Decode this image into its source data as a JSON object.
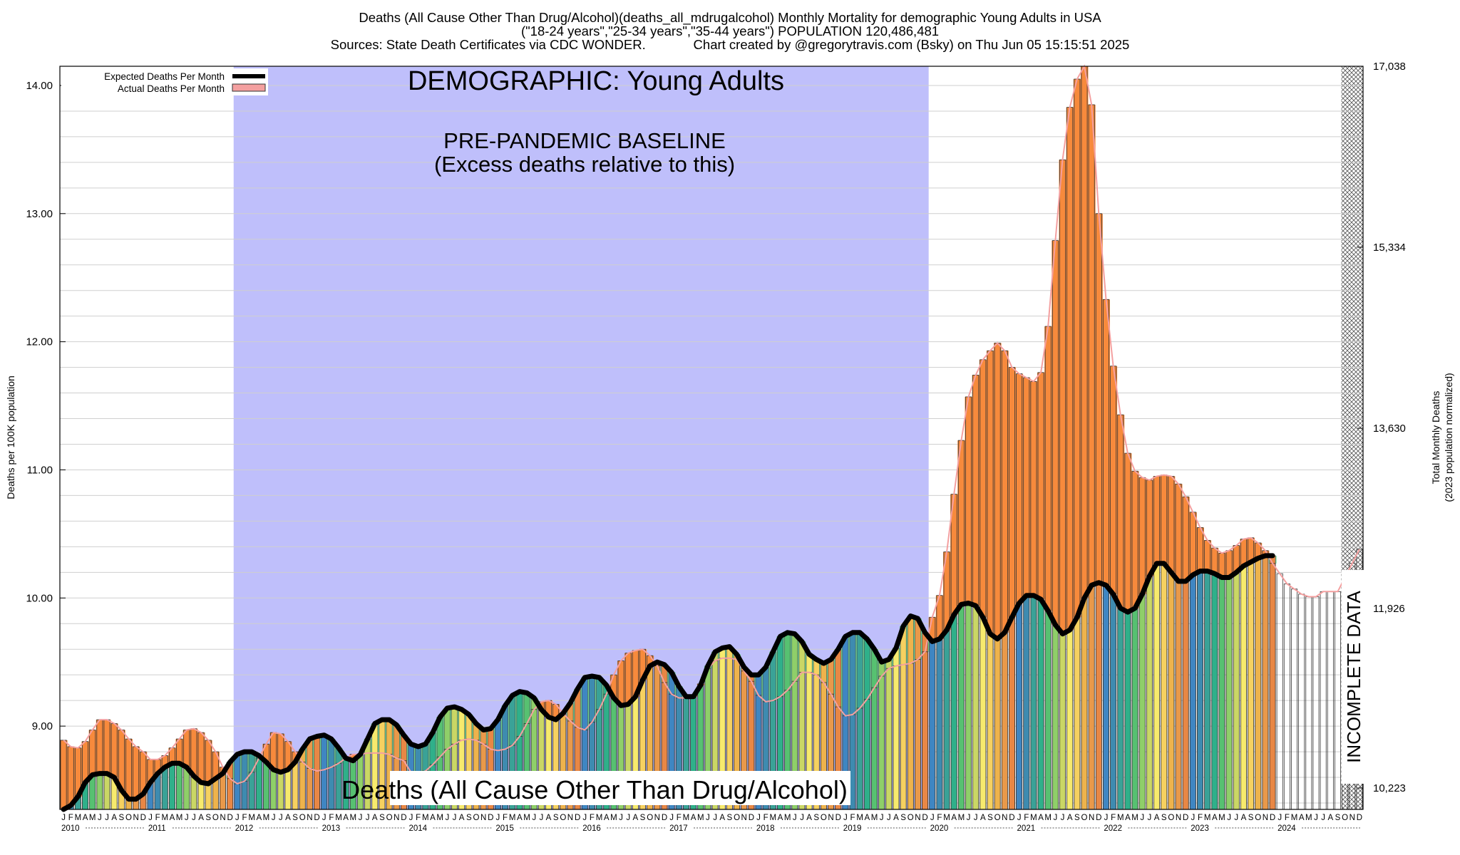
{
  "header": {
    "title_line1": "Deaths (All Cause Other Than Drug/Alcohol)(deaths_all_mdrugalcohol) Monthly Mortality for demographic Young Adults in USA",
    "title_line2": "(\"18-24 years\",\"25-34 years\",\"35-44 years\") POPULATION 120,486,481",
    "title_line3": "Sources: State Death Certificates via CDC WONDER.             Chart created by @gregorytravis.com (Bsky) on Thu Jun 05 15:15:51 2025"
  },
  "chart_data": {
    "type": "bar",
    "ylabel": "Deaths per 100K population",
    "ylabel2_line1": "Total Monthly Deaths",
    "ylabel2_line2": "(2023 population normalized)",
    "ylim": [
      8.35,
      14.15
    ],
    "y_ticks": [
      "9.00",
      "10.00",
      "11.00",
      "12.00",
      "13.00",
      "14.00"
    ],
    "y2_ticks": [
      "10,223",
      "11,926",
      "13,630",
      "15,334",
      "17,038"
    ],
    "start_year": 2010,
    "years": [
      "2010",
      "2011",
      "2012",
      "2013",
      "2014",
      "2015",
      "2016",
      "2017",
      "2018",
      "2019",
      "2020",
      "2021",
      "2022",
      "2023",
      "2024"
    ],
    "month_letters": [
      "J",
      "F",
      "M",
      "A",
      "M",
      "J",
      "J",
      "A",
      "S",
      "O",
      "N",
      "D"
    ],
    "legend": {
      "expected": "Expected Deaths Per Month",
      "actual": "Actual Deaths Per Month"
    },
    "annotations": {
      "demographic": "DEMOGRAPHIC: Young Adults",
      "baseline_line1": "PRE-PANDEMIC BASELINE",
      "baseline_line2": "(Excess deaths relative to this)",
      "bottom_label": "Deaths (All Cause Other Than Drug/Alcohol)",
      "incomplete": "INCOMPLETE DATA"
    },
    "baseline_period": [
      "2012-01",
      "2019-12"
    ],
    "incomplete_period": [
      "2024-10",
      "2024-12"
    ],
    "grid": true,
    "legend_position": "top-left",
    "colors": {
      "baseline_shade": "#bfbffb",
      "excess_fill": "#f78a3c",
      "deficit_fill": "#6ed89a",
      "actual_line": "#f4a0a0",
      "expected_line": "#000000",
      "month_colors": [
        "#3f86c2",
        "#3e8bb0",
        "#3aa297",
        "#2fb08a",
        "#57c171",
        "#8fcf69",
        "#cad765",
        "#f7ea6d",
        "#f6d160",
        "#eeb34c",
        "#e9994a",
        "#e88745"
      ]
    },
    "series": [
      {
        "name": "Actual Deaths Per Month",
        "values": [
          8.89,
          8.84,
          8.83,
          8.88,
          8.97,
          9.05,
          9.05,
          9.02,
          8.97,
          8.9,
          8.84,
          8.8,
          8.74,
          8.74,
          8.77,
          8.83,
          8.9,
          8.97,
          8.98,
          8.95,
          8.89,
          8.8,
          8.68,
          8.59,
          8.55,
          8.57,
          8.64,
          8.75,
          8.86,
          8.95,
          8.94,
          8.88,
          8.8,
          8.72,
          8.67,
          8.65,
          8.66,
          8.68,
          8.71,
          8.75,
          8.78,
          8.78,
          8.79,
          8.79,
          8.79,
          8.78,
          8.75,
          8.73,
          8.64,
          8.63,
          8.65,
          8.7,
          8.76,
          8.82,
          8.86,
          8.89,
          8.9,
          8.89,
          8.86,
          8.82,
          8.81,
          8.82,
          8.85,
          8.92,
          9.02,
          9.13,
          9.19,
          9.2,
          9.17,
          9.1,
          9.04,
          8.99,
          8.97,
          9.03,
          9.13,
          9.25,
          9.4,
          9.51,
          9.57,
          9.59,
          9.6,
          9.55,
          9.47,
          9.34,
          9.25,
          9.22,
          9.22,
          9.24,
          9.33,
          9.45,
          9.51,
          9.53,
          9.53,
          9.52,
          9.43,
          9.35,
          9.24,
          9.19,
          9.2,
          9.23,
          9.28,
          9.35,
          9.42,
          9.42,
          9.4,
          9.34,
          9.25,
          9.15,
          9.08,
          9.09,
          9.14,
          9.21,
          9.3,
          9.39,
          9.45,
          9.47,
          9.48,
          9.49,
          9.52,
          9.58,
          9.85,
          10.02,
          10.36,
          10.81,
          11.23,
          11.57,
          11.74,
          11.86,
          11.93,
          11.99,
          11.93,
          11.8,
          11.75,
          11.72,
          11.69,
          11.76,
          12.12,
          12.79,
          13.42,
          13.83,
          14.05,
          14.15,
          13.85,
          13.0,
          12.33,
          11.81,
          11.43,
          11.13,
          10.99,
          10.94,
          10.92,
          10.95,
          10.96,
          10.95,
          10.89,
          10.79,
          10.67,
          10.55,
          10.45,
          10.39,
          10.35,
          10.37,
          10.41,
          10.46,
          10.47,
          10.43,
          10.37,
          10.27,
          10.19,
          10.11,
          10.07,
          10.03,
          10.01,
          10.01,
          10.05,
          10.05,
          10.05,
          10.16,
          10.27,
          10.38
        ]
      },
      {
        "name": "Expected Deaths Per Month",
        "values": [
          8.35,
          8.38,
          8.45,
          8.56,
          8.62,
          8.63,
          8.63,
          8.6,
          8.5,
          8.43,
          8.43,
          8.47,
          8.56,
          8.63,
          8.68,
          8.71,
          8.71,
          8.68,
          8.61,
          8.56,
          8.55,
          8.59,
          8.63,
          8.72,
          8.78,
          8.8,
          8.8,
          8.77,
          8.72,
          8.66,
          8.64,
          8.66,
          8.72,
          8.82,
          8.9,
          8.92,
          8.93,
          8.9,
          8.83,
          8.75,
          8.73,
          8.78,
          8.9,
          9.02,
          9.05,
          9.05,
          9.01,
          8.93,
          8.86,
          8.84,
          8.86,
          8.95,
          9.07,
          9.14,
          9.15,
          9.13,
          9.09,
          9.02,
          8.97,
          8.98,
          9.05,
          9.16,
          9.24,
          9.27,
          9.26,
          9.22,
          9.13,
          9.07,
          9.05,
          9.1,
          9.18,
          9.29,
          9.38,
          9.39,
          9.38,
          9.32,
          9.22,
          9.16,
          9.17,
          9.23,
          9.36,
          9.47,
          9.5,
          9.48,
          9.42,
          9.31,
          9.23,
          9.23,
          9.32,
          9.47,
          9.58,
          9.61,
          9.62,
          9.56,
          9.46,
          9.4,
          9.4,
          9.46,
          9.58,
          9.7,
          9.73,
          9.72,
          9.66,
          9.56,
          9.52,
          9.49,
          9.52,
          9.6,
          9.7,
          9.73,
          9.73,
          9.68,
          9.6,
          9.5,
          9.52,
          9.61,
          9.78,
          9.86,
          9.84,
          9.73,
          9.66,
          9.68,
          9.75,
          9.87,
          9.95,
          9.96,
          9.94,
          9.85,
          9.72,
          9.68,
          9.73,
          9.85,
          9.96,
          10.02,
          10.02,
          9.99,
          9.9,
          9.79,
          9.72,
          9.75,
          9.85,
          10.0,
          10.1,
          10.12,
          10.1,
          10.03,
          9.92,
          9.89,
          9.92,
          10.03,
          10.17,
          10.27,
          10.27,
          10.2,
          10.13,
          10.13,
          10.18,
          10.21,
          10.21,
          10.19,
          10.16,
          10.16,
          10.2,
          10.25,
          10.28,
          10.31,
          10.33,
          10.33
        ]
      }
    ]
  }
}
